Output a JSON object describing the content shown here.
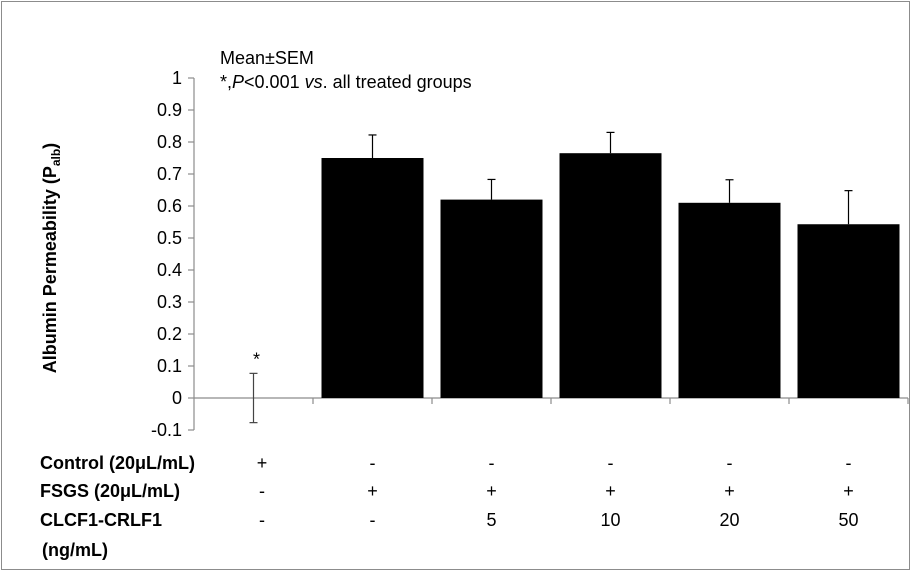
{
  "chart_data": {
    "type": "bar",
    "ylabel": "Albumin Permeability (P",
    "ylabel_sub": "alb",
    "ylabel_close": ")",
    "ylim": [
      -0.1,
      1
    ],
    "yticks": [
      "-0.1",
      "0",
      "0.1",
      "0.2",
      "0.3",
      "0.4",
      "0.5",
      "0.6",
      "0.7",
      "0.8",
      "0.9",
      "1"
    ],
    "grid": false,
    "annotations": {
      "line1": "Mean±SEM",
      "line2_star": "*,",
      "line2_p": "P",
      "line2_mid": "<0.001 ",
      "line2_vs": "vs",
      "line2_end": ". all treated groups",
      "bar_marker": "*"
    },
    "values": [
      0.0,
      0.75,
      0.62,
      0.765,
      0.61,
      0.543
    ],
    "errors": [
      0.077,
      0.072,
      0.063,
      0.065,
      0.072,
      0.105
    ],
    "marked_bar": 0,
    "colors": {
      "bar": "#000000",
      "axis": "#8c8c8c"
    },
    "table": {
      "rows": [
        {
          "label": "Control (20μL/mL)",
          "cells": [
            "+",
            "-",
            "-",
            "-",
            "-",
            "-"
          ]
        },
        {
          "label": "FSGS (20μL/mL)",
          "cells": [
            "-",
            "+",
            "+",
            "+",
            "+",
            "+"
          ]
        },
        {
          "label": "CLCF1-CRLF1",
          "cells": [
            "-",
            "-",
            "5",
            "10",
            "20",
            "50"
          ]
        }
      ],
      "extra_label": "(ng/mL)"
    }
  }
}
